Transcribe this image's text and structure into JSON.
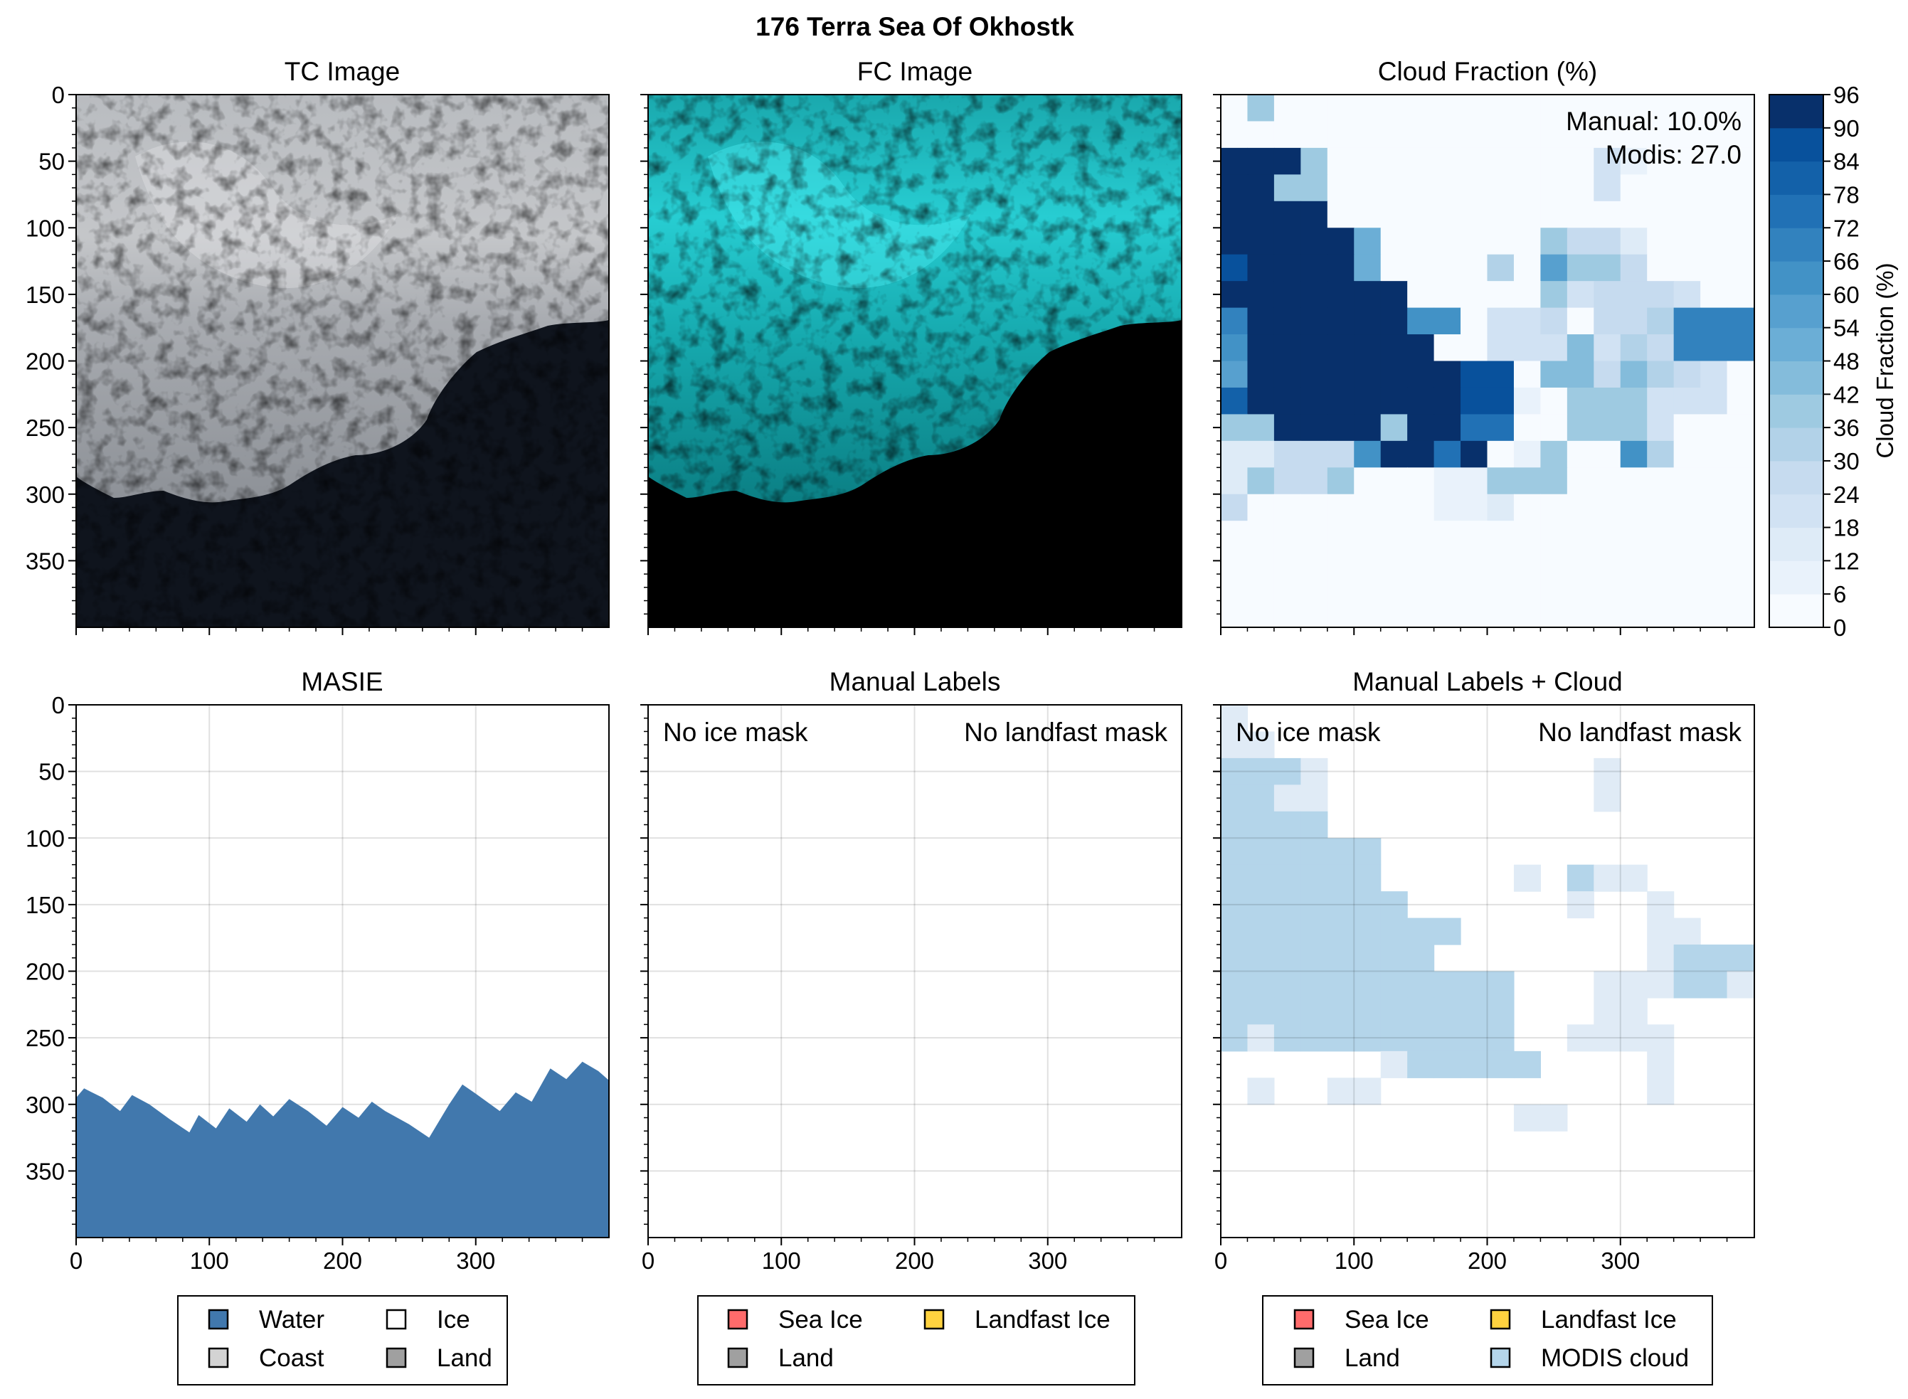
{
  "figure": {
    "title": "176 Terra Sea Of Okhostk"
  },
  "panels": {
    "tc": {
      "title": "TC Image"
    },
    "fc": {
      "title": "FC Image"
    },
    "cloud": {
      "title": "Cloud Fraction (%)",
      "note_manual": "Manual: 10.0%",
      "note_modis": "Modis: 27.0"
    },
    "masie": {
      "title": "MASIE"
    },
    "manual": {
      "title": "Manual Labels",
      "note_left": "No ice mask",
      "note_right": "No landfast mask"
    },
    "manual_cloud": {
      "title": "Manual Labels + Cloud",
      "note_left": "No ice mask",
      "note_right": "No landfast mask"
    }
  },
  "colorbar": {
    "label": "Cloud Fraction (%)",
    "ticks": [
      "0",
      "6",
      "12",
      "18",
      "24",
      "30",
      "36",
      "42",
      "48",
      "54",
      "60",
      "66",
      "72",
      "78",
      "84",
      "90",
      "96"
    ]
  },
  "legends": {
    "masie": [
      {
        "label": "Water",
        "color": "#4178ad"
      },
      {
        "label": "Ice",
        "color": "#ffffff"
      },
      {
        "label": "Coast",
        "color": "#d3d3d3"
      },
      {
        "label": "Land",
        "color": "#a0a0a0"
      }
    ],
    "manual": [
      {
        "label": "Sea Ice",
        "color": "#ff6b6b"
      },
      {
        "label": "Landfast Ice",
        "color": "#ffd23f"
      },
      {
        "label": "Land",
        "color": "#a0a0a0"
      }
    ],
    "manual_cloud": [
      {
        "label": "Sea Ice",
        "color": "#ff6b6b"
      },
      {
        "label": "Landfast Ice",
        "color": "#ffd23f"
      },
      {
        "label": "Land",
        "color": "#a0a0a0"
      },
      {
        "label": "MODIS cloud",
        "color": "#b4d5ea"
      }
    ]
  },
  "chart_data": [
    {
      "type": "heatmap",
      "name": "TC Image",
      "xlim": [
        0,
        400
      ],
      "ylim": [
        400,
        0
      ],
      "xticks": [
        "0",
        "100",
        "200",
        "300"
      ],
      "yticks": [
        "0",
        "50",
        "100",
        "150",
        "200",
        "250",
        "300",
        "350"
      ]
    },
    {
      "type": "heatmap",
      "name": "FC Image",
      "xlim": [
        0,
        400
      ],
      "ylim": [
        400,
        0
      ]
    },
    {
      "type": "heatmap",
      "name": "Cloud Fraction (%)",
      "grid_cell": 20,
      "vmin": 0,
      "vmax": 96,
      "values": [
        [
          0,
          36,
          0,
          0,
          0,
          0,
          0,
          0,
          0,
          0,
          0,
          0,
          0,
          0,
          0,
          0,
          0,
          0,
          0,
          0
        ],
        [
          0,
          0,
          0,
          0,
          0,
          0,
          0,
          0,
          0,
          0,
          0,
          0,
          0,
          0,
          0,
          0,
          0,
          0,
          0,
          0
        ],
        [
          96,
          96,
          96,
          36,
          0,
          0,
          0,
          0,
          0,
          0,
          0,
          0,
          0,
          0,
          18,
          6,
          0,
          0,
          0,
          0
        ],
        [
          96,
          96,
          36,
          36,
          0,
          0,
          0,
          0,
          0,
          0,
          0,
          0,
          0,
          0,
          18,
          0,
          0,
          0,
          0,
          0
        ],
        [
          96,
          96,
          96,
          96,
          0,
          0,
          0,
          0,
          0,
          0,
          0,
          0,
          0,
          0,
          0,
          0,
          0,
          0,
          0,
          0
        ],
        [
          96,
          96,
          96,
          96,
          96,
          48,
          0,
          0,
          0,
          0,
          0,
          0,
          36,
          24,
          24,
          12,
          0,
          0,
          0,
          0
        ],
        [
          84,
          96,
          96,
          96,
          96,
          48,
          0,
          0,
          0,
          0,
          30,
          0,
          54,
          36,
          36,
          24,
          0,
          0,
          0,
          0
        ],
        [
          90,
          96,
          96,
          96,
          96,
          96,
          96,
          0,
          0,
          0,
          0,
          0,
          36,
          18,
          24,
          24,
          24,
          18,
          0,
          0
        ],
        [
          66,
          96,
          96,
          96,
          96,
          96,
          96,
          60,
          60,
          0,
          18,
          18,
          24,
          0,
          24,
          24,
          30,
          66,
          66,
          66
        ],
        [
          60,
          96,
          96,
          96,
          96,
          96,
          96,
          96,
          0,
          0,
          18,
          18,
          18,
          42,
          18,
          30,
          24,
          66,
          66,
          66
        ],
        [
          54,
          96,
          96,
          96,
          96,
          96,
          96,
          96,
          96,
          84,
          84,
          0,
          42,
          42,
          24,
          42,
          30,
          24,
          18,
          0
        ],
        [
          78,
          96,
          96,
          96,
          96,
          96,
          96,
          96,
          96,
          84,
          84,
          6,
          0,
          36,
          36,
          36,
          18,
          18,
          18,
          0
        ],
        [
          36,
          36,
          96,
          96,
          96,
          96,
          36,
          96,
          96,
          72,
          72,
          0,
          0,
          36,
          36,
          36,
          18,
          0,
          0,
          0
        ],
        [
          12,
          12,
          24,
          24,
          24,
          60,
          96,
          96,
          72,
          96,
          0,
          6,
          36,
          0,
          0,
          60,
          30,
          0,
          0,
          0
        ],
        [
          12,
          36,
          24,
          24,
          36,
          0,
          0,
          0,
          6,
          6,
          36,
          36,
          36,
          0,
          0,
          0,
          0,
          0,
          0,
          0
        ],
        [
          24,
          0,
          0,
          0,
          0,
          0,
          0,
          0,
          6,
          6,
          12,
          0,
          0,
          0,
          0,
          0,
          0,
          0,
          0,
          0
        ],
        [
          0,
          0,
          0,
          0,
          0,
          0,
          0,
          0,
          0,
          0,
          0,
          0,
          0,
          0,
          0,
          0,
          0,
          0,
          0,
          0
        ],
        [
          0,
          0,
          0,
          0,
          0,
          0,
          0,
          0,
          0,
          0,
          0,
          0,
          0,
          0,
          0,
          0,
          0,
          0,
          0,
          0
        ],
        [
          0,
          0,
          0,
          0,
          0,
          0,
          0,
          0,
          0,
          0,
          0,
          0,
          0,
          0,
          0,
          0,
          0,
          0,
          0,
          0
        ],
        [
          0,
          0,
          0,
          0,
          0,
          0,
          0,
          0,
          0,
          0,
          0,
          0,
          0,
          0,
          0,
          0,
          0,
          0,
          0,
          0
        ]
      ]
    },
    {
      "type": "area",
      "name": "MASIE",
      "series": [
        {
          "name": "Water",
          "x": [
            0,
            6,
            20,
            33,
            42,
            55,
            70,
            85,
            92,
            105,
            115,
            128,
            138,
            148,
            160,
            174,
            188,
            200,
            212,
            222,
            232,
            250,
            265,
            280,
            290,
            300,
            318,
            330,
            342,
            356,
            368,
            380,
            392,
            400
          ],
          "y": [
            295,
            288,
            295,
            305,
            293,
            300,
            311,
            321,
            308,
            318,
            303,
            313,
            300,
            309,
            296,
            305,
            316,
            302,
            310,
            298,
            305,
            315,
            325,
            300,
            285,
            292,
            305,
            291,
            298,
            273,
            281,
            268,
            275,
            282
          ]
        }
      ]
    },
    {
      "type": "heatmap",
      "name": "Manual Labels",
      "values": []
    },
    {
      "type": "heatmap",
      "name": "Manual Labels + Cloud",
      "grid_cell": 20,
      "levels": {
        "0": "#ffffff",
        "1": "#e0ebf6",
        "2": "#b4d5ea"
      },
      "values": [
        [
          1,
          0,
          0,
          0,
          0,
          0,
          0,
          0,
          0,
          0,
          0,
          0,
          0,
          0,
          0,
          0,
          0,
          0,
          0,
          0
        ],
        [
          1,
          1,
          0,
          0,
          0,
          0,
          0,
          0,
          0,
          0,
          0,
          0,
          0,
          0,
          0,
          0,
          0,
          0,
          0,
          0
        ],
        [
          2,
          2,
          2,
          1,
          0,
          0,
          0,
          0,
          0,
          0,
          0,
          0,
          0,
          0,
          1,
          0,
          0,
          0,
          0,
          0
        ],
        [
          2,
          2,
          1,
          1,
          0,
          0,
          0,
          0,
          0,
          0,
          0,
          0,
          0,
          0,
          1,
          0,
          0,
          0,
          0,
          0
        ],
        [
          2,
          2,
          2,
          2,
          0,
          0,
          0,
          0,
          0,
          0,
          0,
          0,
          0,
          0,
          0,
          0,
          0,
          0,
          0,
          0
        ],
        [
          2,
          2,
          2,
          2,
          2,
          2,
          0,
          0,
          0,
          0,
          0,
          0,
          0,
          0,
          0,
          0,
          0,
          0,
          0,
          0
        ],
        [
          2,
          2,
          2,
          2,
          2,
          2,
          0,
          0,
          0,
          0,
          0,
          1,
          0,
          2,
          1,
          1,
          0,
          0,
          0,
          0
        ],
        [
          2,
          2,
          2,
          2,
          2,
          2,
          2,
          0,
          0,
          0,
          0,
          0,
          0,
          1,
          0,
          0,
          1,
          0,
          0,
          0
        ],
        [
          2,
          2,
          2,
          2,
          2,
          2,
          2,
          2,
          2,
          0,
          0,
          0,
          0,
          0,
          0,
          0,
          1,
          1,
          0,
          0
        ],
        [
          2,
          2,
          2,
          2,
          2,
          2,
          2,
          2,
          0,
          0,
          0,
          0,
          0,
          0,
          0,
          0,
          1,
          2,
          2,
          2
        ],
        [
          2,
          2,
          2,
          2,
          2,
          2,
          2,
          2,
          2,
          2,
          2,
          0,
          0,
          0,
          1,
          1,
          1,
          2,
          2,
          1
        ],
        [
          2,
          2,
          2,
          2,
          2,
          2,
          2,
          2,
          2,
          2,
          2,
          0,
          0,
          0,
          1,
          1,
          0,
          0,
          0,
          0
        ],
        [
          2,
          1,
          2,
          2,
          2,
          2,
          2,
          2,
          2,
          2,
          2,
          0,
          0,
          1,
          1,
          1,
          1,
          0,
          0,
          0
        ],
        [
          0,
          0,
          0,
          0,
          0,
          0,
          1,
          2,
          2,
          2,
          2,
          2,
          0,
          0,
          0,
          0,
          1,
          0,
          0,
          0
        ],
        [
          0,
          1,
          0,
          0,
          1,
          1,
          0,
          0,
          0,
          0,
          0,
          0,
          0,
          0,
          0,
          0,
          1,
          0,
          0,
          0
        ],
        [
          0,
          0,
          0,
          0,
          0,
          0,
          0,
          0,
          0,
          0,
          0,
          1,
          1,
          0,
          0,
          0,
          0,
          0,
          0,
          0
        ],
        [
          0,
          0,
          0,
          0,
          0,
          0,
          0,
          0,
          0,
          0,
          0,
          0,
          0,
          0,
          0,
          0,
          0,
          0,
          0,
          0
        ],
        [
          0,
          0,
          0,
          0,
          0,
          0,
          0,
          0,
          0,
          0,
          0,
          0,
          0,
          0,
          0,
          0,
          0,
          0,
          0,
          0
        ],
        [
          0,
          0,
          0,
          0,
          0,
          0,
          0,
          0,
          0,
          0,
          0,
          0,
          0,
          0,
          0,
          0,
          0,
          0,
          0,
          0
        ],
        [
          0,
          0,
          0,
          0,
          0,
          0,
          0,
          0,
          0,
          0,
          0,
          0,
          0,
          0,
          0,
          0,
          0,
          0,
          0,
          0
        ]
      ]
    }
  ]
}
